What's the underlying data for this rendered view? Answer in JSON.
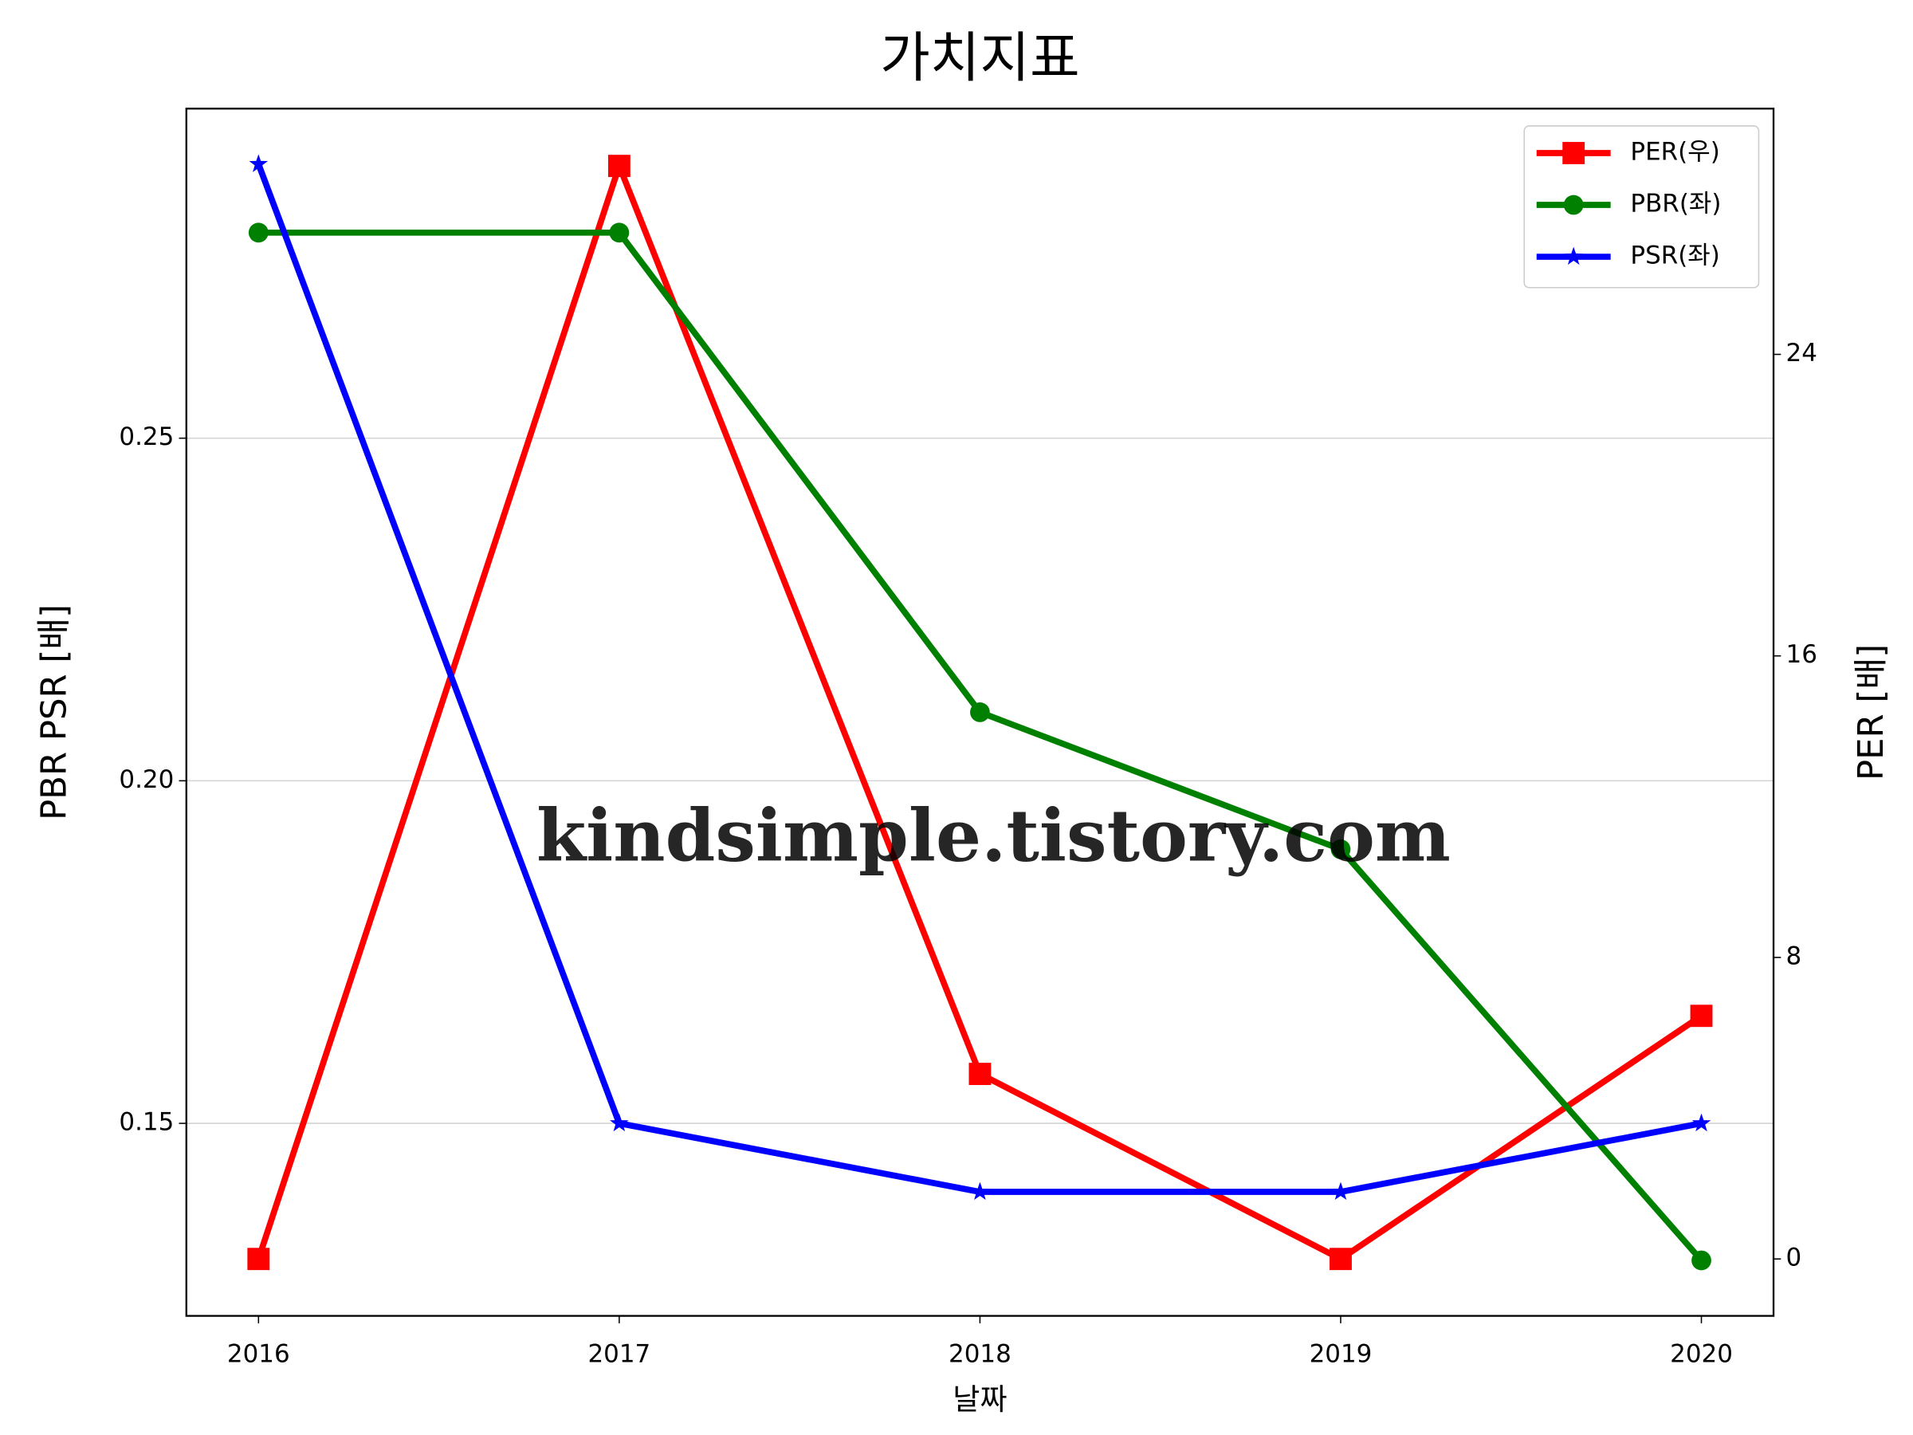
{
  "chart_data": {
    "type": "line",
    "title": "가치지표",
    "xlabel": "날짜",
    "ylabel": "PBR PSR [배]",
    "y2label": "PER [배]",
    "ylabel_color": "#008000",
    "y2label_color": "#ff0000",
    "watermark": "kindsimple.tistory.com",
    "x": [
      2016,
      2017,
      2018,
      2019,
      2020
    ],
    "xlim": [
      2015.8,
      2020.2
    ],
    "xticks": [
      2016,
      2017,
      2018,
      2019,
      2020
    ],
    "ylim": [
      0.1219,
      0.2981
    ],
    "yticks": [
      {
        "value": 0.15,
        "label": "0.15"
      },
      {
        "value": 0.2,
        "label": "0.20"
      },
      0.25
    ],
    "y2lim": [
      -1.51,
      30.52
    ],
    "y2ticks": [
      0,
      8,
      16,
      24
    ],
    "grid": true,
    "legend": "upper right",
    "series": [
      {
        "name": "PER(우)",
        "color": "#ff0000",
        "marker": "square",
        "axis": "y2",
        "values": [
          0,
          29.0,
          4.91,
          0,
          6.45
        ]
      },
      {
        "name": "PBR(좌)",
        "color": "#008000",
        "marker": "circle",
        "values": [
          0.28,
          0.28,
          0.21,
          0.19,
          0.13
        ]
      },
      {
        "name": "PSR(좌)",
        "color": "#0000ff",
        "marker": "star",
        "values": [
          0.29,
          0.15,
          0.14,
          0.14,
          0.15
        ]
      }
    ]
  }
}
